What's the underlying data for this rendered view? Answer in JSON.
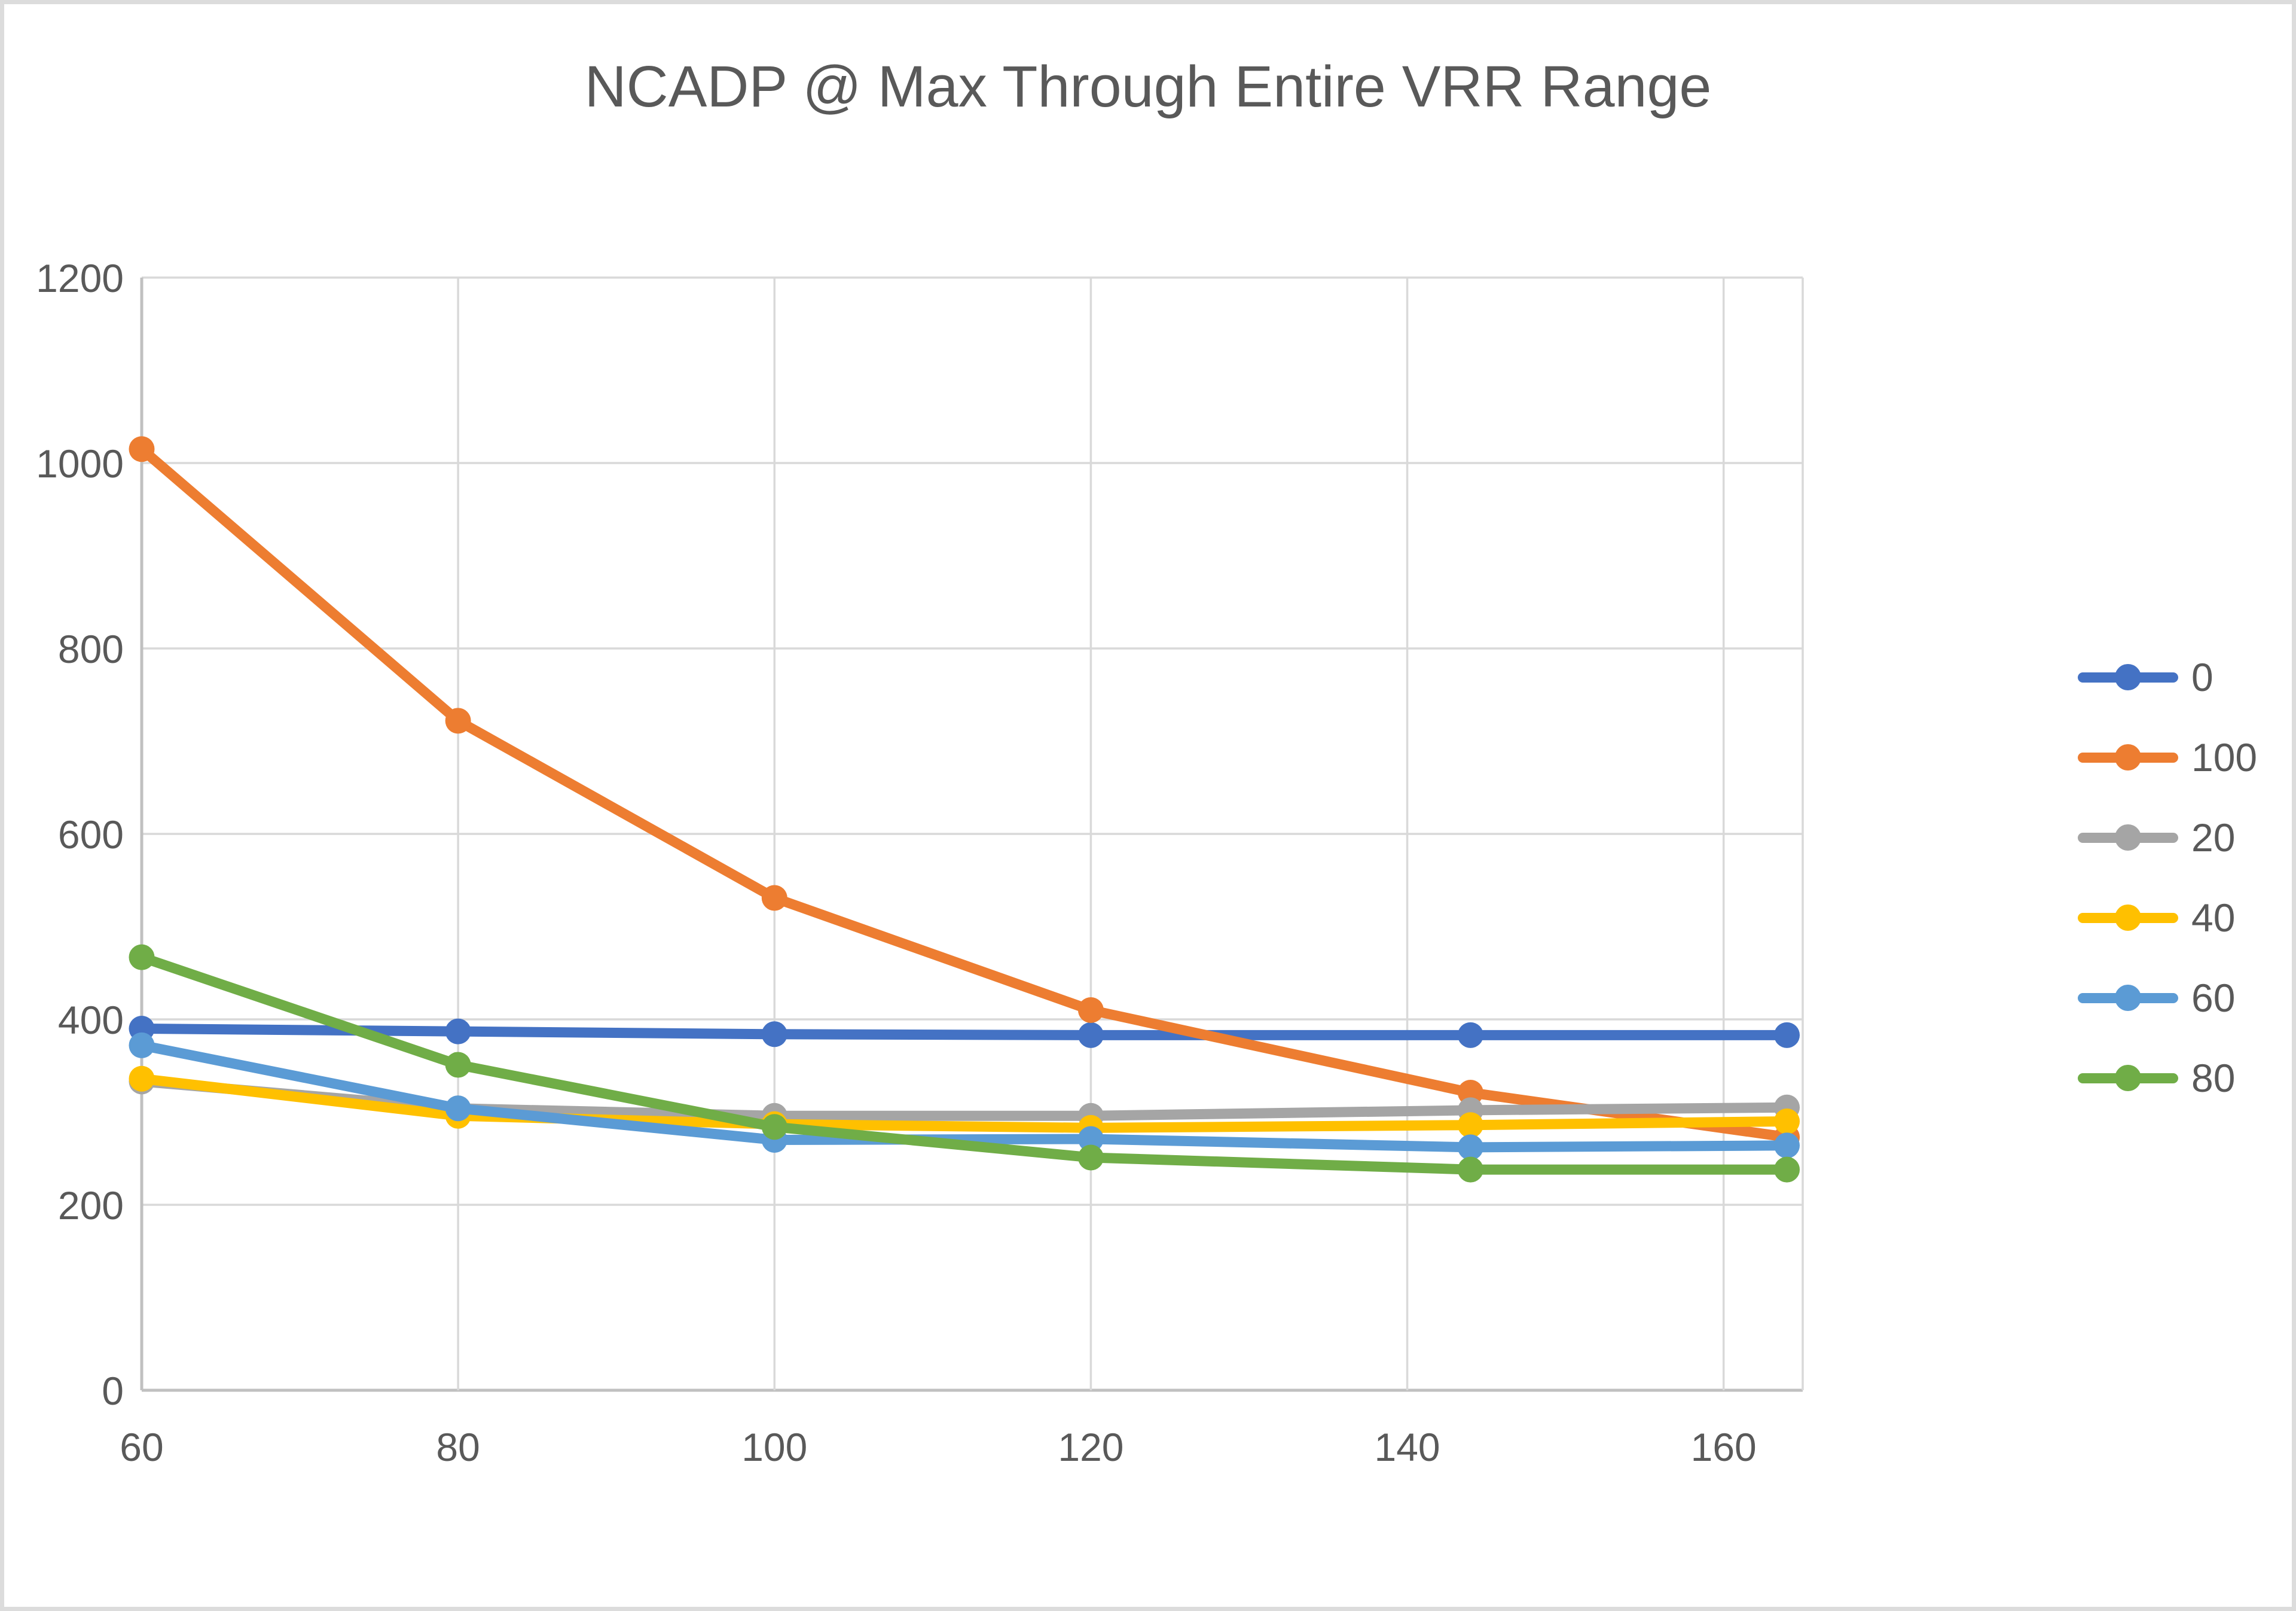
{
  "chart_data": {
    "type": "line",
    "title": "NCADP @ Max Through Entire VRR Range",
    "x": [
      60,
      80,
      100,
      120,
      144,
      164
    ],
    "series": [
      {
        "name": "0",
        "color": "#4472C4",
        "values": [
          390,
          387,
          384,
          383,
          383,
          383
        ]
      },
      {
        "name": "100",
        "color": "#ED7D31",
        "values": [
          1015,
          722,
          531,
          410,
          321,
          273
        ]
      },
      {
        "name": "20",
        "color": "#A5A5A5",
        "values": [
          333,
          304,
          296,
          296,
          302,
          305
        ]
      },
      {
        "name": "40",
        "color": "#FFC000",
        "values": [
          336,
          296,
          287,
          283,
          286,
          290
        ]
      },
      {
        "name": "60",
        "color": "#5B9BD5",
        "values": [
          372,
          304,
          270,
          271,
          262,
          264
        ]
      },
      {
        "name": "80",
        "color": "#70AD47",
        "values": [
          467,
          351,
          284,
          251,
          238,
          238
        ]
      }
    ],
    "xlim": [
      60,
      165
    ],
    "ylim": [
      0,
      1200
    ],
    "x_ticks": [
      60,
      80,
      100,
      120,
      140,
      160
    ],
    "y_ticks": [
      0,
      200,
      400,
      600,
      800,
      1000,
      1200
    ],
    "grid": true,
    "legend_position": "right",
    "xlabel": "",
    "ylabel": ""
  },
  "style": {
    "text_color": "#595959",
    "gridline_color": "#D9D9D9",
    "axis_color": "#C0C0C0",
    "background": "#FFFFFF",
    "frame_border": "#DCDCDC"
  }
}
